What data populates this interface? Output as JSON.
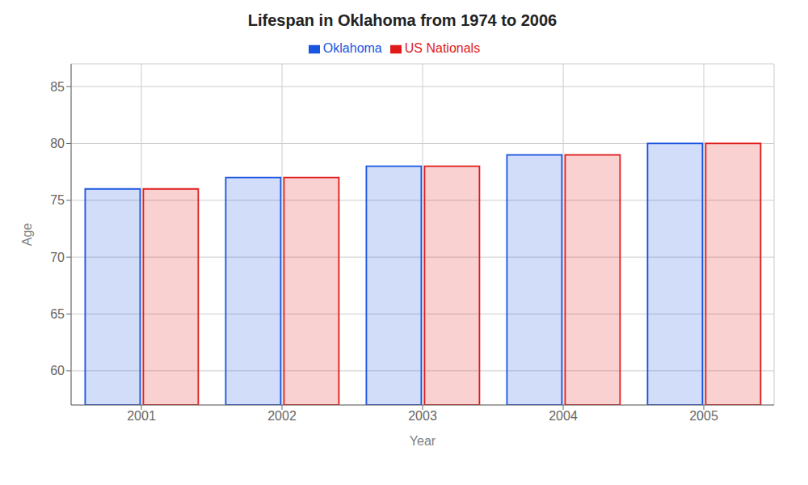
{
  "chart_data": {
    "type": "bar",
    "title": "Lifespan in Oklahoma from 1974 to 2006",
    "xlabel": "Year",
    "ylabel": "Age",
    "categories": [
      "2001",
      "2002",
      "2003",
      "2004",
      "2005"
    ],
    "series": [
      {
        "name": "Oklahoma",
        "color": "#1a55e0",
        "values": [
          76,
          77,
          78,
          79,
          80
        ]
      },
      {
        "name": "US Nationals",
        "color": "#e01a1a",
        "values": [
          76,
          77,
          78,
          79,
          80
        ]
      }
    ],
    "ylim": [
      57,
      87
    ],
    "yticks": [
      60,
      65,
      70,
      75,
      80,
      85
    ],
    "grid": true,
    "legend": "top"
  }
}
